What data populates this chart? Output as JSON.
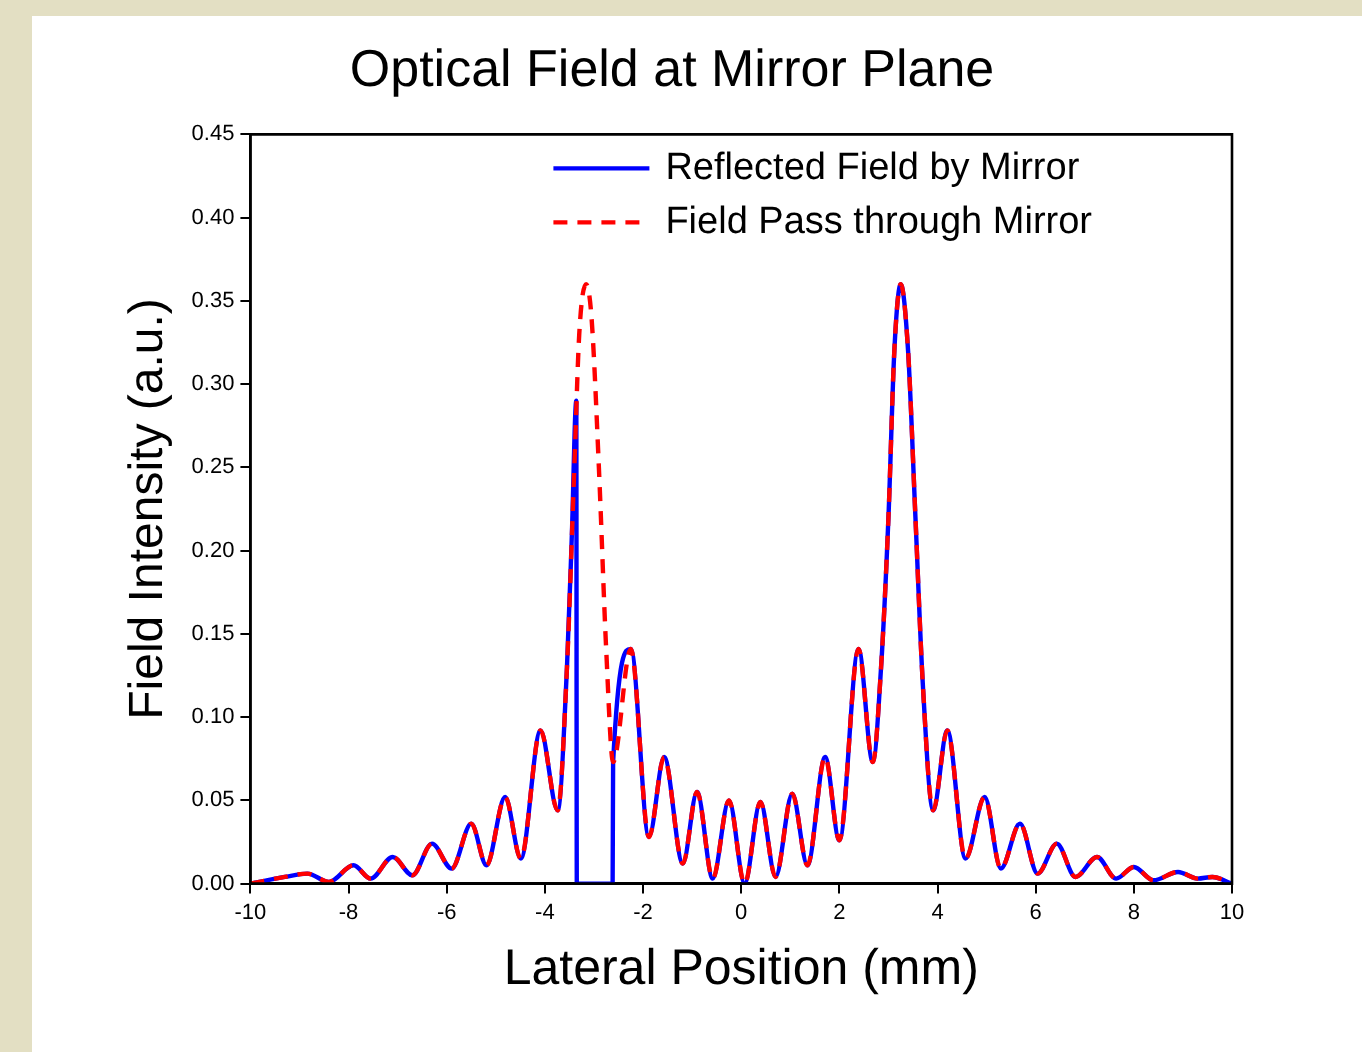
{
  "chart_data": {
    "type": "line",
    "title": "Optical Field at Mirror Plane",
    "xlabel": "Lateral Position (mm)",
    "ylabel": "Field Intensity (a.u.)",
    "xlim": [
      -10,
      10
    ],
    "xticks": [
      -10,
      -8,
      -6,
      -4,
      -2,
      0,
      2,
      4,
      6,
      8,
      10
    ],
    "ylim": [
      0,
      0.45
    ],
    "yticks": [
      {
        "value": 0,
        "label": "0.00"
      },
      {
        "value": 0.05,
        "label": "0.05"
      },
      {
        "value": 0.1,
        "label": "0.10"
      },
      {
        "value": 0.15,
        "label": "0.15"
      },
      {
        "value": 0.2,
        "label": "0.20"
      },
      {
        "value": 0.25,
        "label": "0.25"
      },
      {
        "value": 0.3,
        "label": "0.30"
      },
      {
        "value": 0.35,
        "label": "0.35"
      },
      {
        "value": 0.4,
        "label": "0.40"
      },
      {
        "value": 0.45,
        "label": "0.45"
      }
    ],
    "grid": false,
    "legend": "top right",
    "marker": "none",
    "series": [
      {
        "name": "Reflected Field by Mirror",
        "color": "#0000ff",
        "line_style": "solid",
        "x": [
          -10,
          -9.3,
          -8.84,
          -8.4,
          -7.9,
          -7.55,
          -7.1,
          -6.7,
          -6.3,
          -5.9,
          -5.5,
          -5.19,
          -4.81,
          -4.49,
          -4.09,
          -3.74,
          -3.55,
          -3.45,
          -3.36,
          -3.35,
          -2.62,
          -2.61,
          -2.25,
          -1.88,
          -1.57,
          -1.19,
          -0.9,
          -0.58,
          -0.25,
          0.07,
          0.39,
          0.7,
          1.04,
          1.35,
          1.71,
          2.0,
          2.39,
          2.68,
          2.85,
          3.0,
          3.12,
          3.25,
          3.4,
          3.55,
          3.7,
          3.91,
          4.2,
          4.57,
          4.96,
          5.29,
          5.68,
          6.04,
          6.43,
          6.81,
          7.25,
          7.64,
          8.0,
          8.4,
          8.9,
          9.3,
          9.6,
          10
        ],
        "values": [
          0,
          0.004,
          0.006,
          0.001,
          0.011,
          0.003,
          0.016,
          0.005,
          0.024,
          0.009,
          0.036,
          0.011,
          0.052,
          0.015,
          0.092,
          0.044,
          0.13,
          0.21,
          0.29,
          0,
          0,
          0.073,
          0.141,
          0.028,
          0.076,
          0.012,
          0.055,
          0.003,
          0.05,
          0,
          0.049,
          0.004,
          0.054,
          0.011,
          0.076,
          0.026,
          0.141,
          0.073,
          0.13,
          0.22,
          0.32,
          0.36,
          0.32,
          0.22,
          0.12,
          0.044,
          0.092,
          0.015,
          0.052,
          0.009,
          0.036,
          0.006,
          0.024,
          0.004,
          0.016,
          0.003,
          0.01,
          0.002,
          0.007,
          0.003,
          0.004,
          0
        ]
      },
      {
        "name": "Field Pass through Mirror",
        "color": "#ff0000",
        "line_style": "dashed",
        "x": [
          -10,
          -9.3,
          -8.84,
          -8.4,
          -7.9,
          -7.55,
          -7.1,
          -6.7,
          -6.3,
          -5.9,
          -5.5,
          -5.19,
          -4.81,
          -4.49,
          -4.09,
          -3.74,
          -3.55,
          -3.4,
          -3.3,
          -3.16,
          -3.05,
          -2.9,
          -2.75,
          -2.61,
          -2.25,
          -1.88,
          -1.57,
          -1.19,
          -0.9,
          -0.58,
          -0.25,
          0.07,
          0.39,
          0.7,
          1.04,
          1.35,
          1.71,
          2.0,
          2.39,
          2.68,
          2.85,
          3.0,
          3.12,
          3.25,
          3.4,
          3.55,
          3.7,
          3.91,
          4.2,
          4.57,
          4.96,
          5.29,
          5.68,
          6.04,
          6.43,
          6.81,
          7.25,
          7.64,
          8.0,
          8.4,
          8.9,
          9.3,
          9.6,
          10
        ],
        "values": [
          0,
          0.004,
          0.006,
          0.001,
          0.011,
          0.003,
          0.016,
          0.005,
          0.024,
          0.009,
          0.036,
          0.011,
          0.052,
          0.015,
          0.092,
          0.044,
          0.13,
          0.25,
          0.33,
          0.36,
          0.34,
          0.25,
          0.14,
          0.073,
          0.141,
          0.028,
          0.076,
          0.012,
          0.055,
          0.003,
          0.05,
          0,
          0.049,
          0.004,
          0.054,
          0.011,
          0.076,
          0.026,
          0.141,
          0.073,
          0.13,
          0.22,
          0.32,
          0.36,
          0.32,
          0.22,
          0.12,
          0.044,
          0.092,
          0.015,
          0.052,
          0.009,
          0.036,
          0.006,
          0.024,
          0.004,
          0.016,
          0.003,
          0.01,
          0.002,
          0.007,
          0.003,
          0.004,
          0
        ]
      }
    ]
  }
}
